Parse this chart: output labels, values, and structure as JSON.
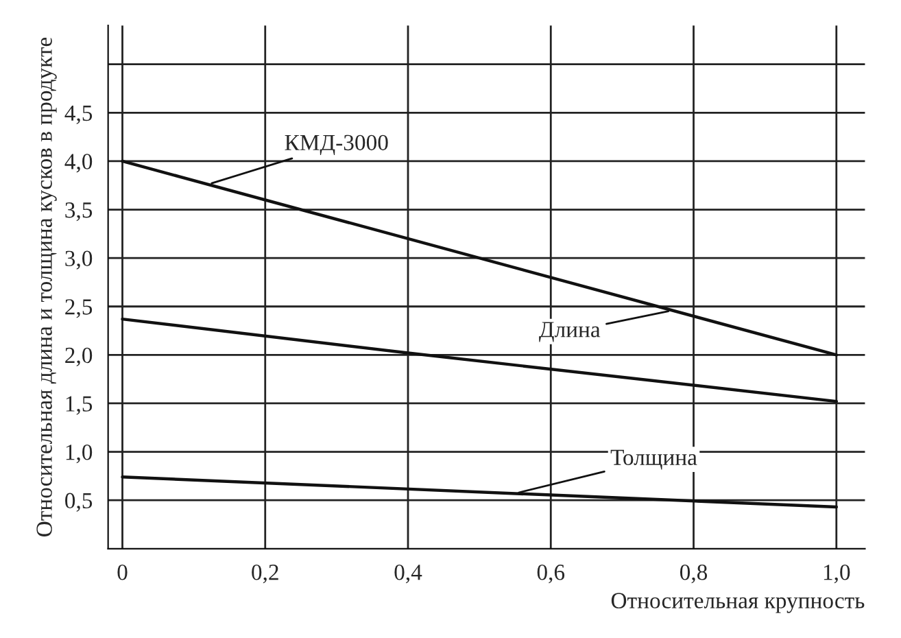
{
  "chart_data": {
    "type": "line",
    "xlabel": "Относительная крупность",
    "ylabel": "Относительная длина и толщина кусков в продукте",
    "series": [
      {
        "color": "#111111",
        "x": [
          0,
          1.0
        ],
        "values": [
          4.0,
          2.0
        ]
      },
      {
        "color": "#111111",
        "x": [
          0,
          0.4,
          1.0
        ],
        "values": [
          2.37,
          2.02,
          1.52
        ]
      },
      {
        "color": "#111111",
        "x": [
          0,
          1.0
        ],
        "values": [
          0.74,
          0.43
        ]
      }
    ],
    "annotations": [
      {
        "text": "КМД-3000",
        "x": 0.12,
        "y": 3.76
      },
      {
        "text": "Длина",
        "x": 0.77,
        "y": 2.46
      },
      {
        "text": "Толщина",
        "x": 0.55,
        "y": 0.57
      }
    ],
    "xlim": [
      -0.02,
      1.04
    ],
    "ylim": [
      0,
      5.4
    ],
    "xticks": [
      0,
      {
        "value": 0.2,
        "label": "0,2"
      },
      {
        "value": 0.4,
        "label": "0,4"
      },
      {
        "value": 0.6,
        "label": "0,6"
      },
      {
        "value": 0.8,
        "label": "0,8"
      },
      {
        "value": 1.0,
        "label": "1,0"
      }
    ],
    "yticks": [
      {
        "value": 0.5,
        "label": "0,5"
      },
      {
        "value": 1.0,
        "label": "1,0"
      },
      {
        "value": 1.5,
        "label": "1,5"
      },
      {
        "value": 2.0,
        "label": "2,0"
      },
      {
        "value": 2.5,
        "label": "2,5"
      },
      {
        "value": 3.0,
        "label": "3,0"
      },
      {
        "value": 3.5,
        "label": "3,5"
      },
      {
        "value": 4.0,
        "label": "4,0"
      },
      {
        "value": 4.5,
        "label": "4,5"
      },
      {
        "value": 5.0,
        "label": null
      }
    ],
    "grid": true,
    "marker": "none",
    "line_style": "solid",
    "legend": false
  }
}
